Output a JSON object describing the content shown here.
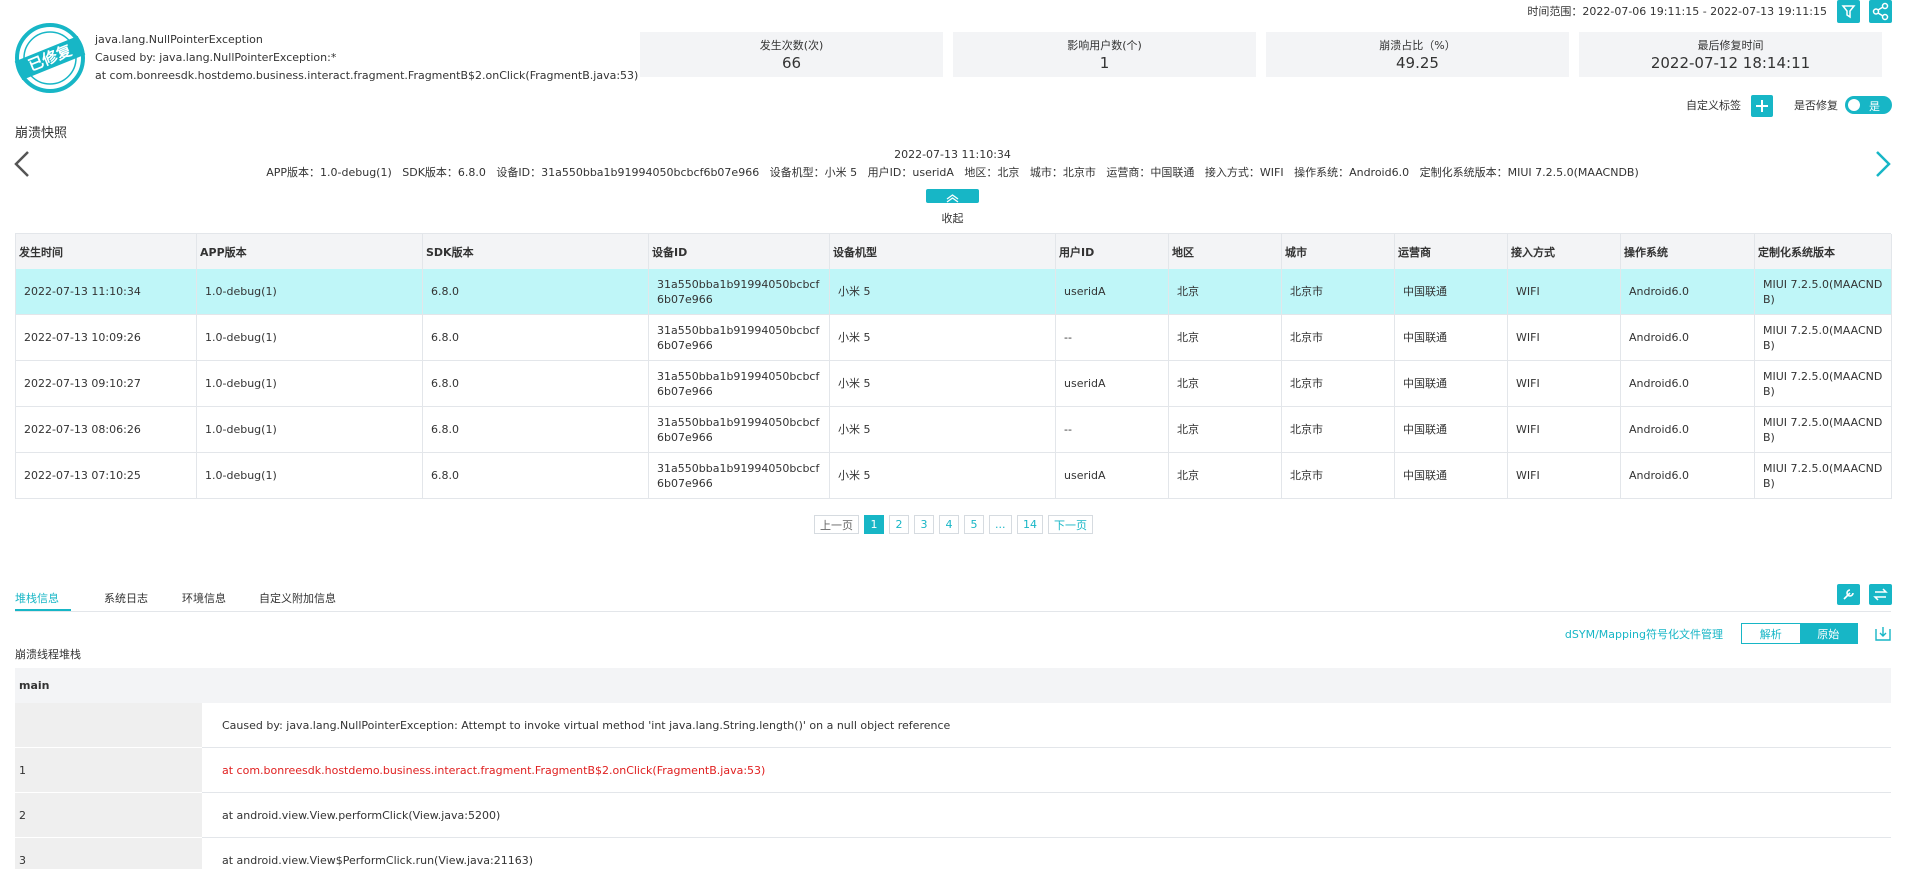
{
  "header": {
    "badge": "已修复",
    "exception": [
      "java.lang.NullPointerException",
      "Caused by: java.lang.NullPointerException:*",
      "at com.bonreesdk.hostdemo.business.interact.fragment.FragmentB$2.onClick(FragmentB.java:53)"
    ],
    "time_range": "时间范围：2022-07-06 19:11:15 - 2022-07-13 19:11:15"
  },
  "stats": [
    {
      "label": "发生次数(次)",
      "value": "66"
    },
    {
      "label": "影响用户数(个)",
      "value": "1"
    },
    {
      "label": "崩溃占比（%）",
      "value": "49.25"
    },
    {
      "label": "最后修复时间",
      "value": "2022-07-12 18:14:11"
    }
  ],
  "tag_label": "自定义标签",
  "fixed_label": "是否修复",
  "fixed_toggle": "是",
  "snapshot": {
    "title": "崩溃快照",
    "time": "2022-07-13 11:10:34",
    "info": "APP版本：1.0-debug(1)   SDK版本：6.8.0   设备ID：31a550bba1b91994050bcbcf6b07e966   设备机型：小米 5   用户ID：useridA   地区：北京   城市：北京市   运营商：中国联通   接入方式：WIFI   操作系统：Android6.0   定制化系统版本：MIUI 7.2.5.0(MAACNDB)",
    "collapse": "收起"
  },
  "table": {
    "columns": [
      "发生时间",
      "APP版本",
      "SDK版本",
      "设备ID",
      "设备机型",
      "用户ID",
      "地区",
      "城市",
      "运营商",
      "接入方式",
      "操作系统",
      "定制化系统版本"
    ],
    "rows": [
      [
        "2022-07-13 11:10:34",
        "1.0-debug(1)",
        "6.8.0",
        "31a550bba1b91994050bcbcf6b07e966",
        "小米 5",
        "useridA",
        "北京",
        "北京市",
        "中国联通",
        "WIFI",
        "Android6.0",
        "MIUI 7.2.5.0(MAACNDB)"
      ],
      [
        "2022-07-13 10:09:26",
        "1.0-debug(1)",
        "6.8.0",
        "31a550bba1b91994050bcbcf6b07e966",
        "小米 5",
        "--",
        "北京",
        "北京市",
        "中国联通",
        "WIFI",
        "Android6.0",
        "MIUI 7.2.5.0(MAACNDB)"
      ],
      [
        "2022-07-13 09:10:27",
        "1.0-debug(1)",
        "6.8.0",
        "31a550bba1b91994050bcbcf6b07e966",
        "小米 5",
        "useridA",
        "北京",
        "北京市",
        "中国联通",
        "WIFI",
        "Android6.0",
        "MIUI 7.2.5.0(MAACNDB)"
      ],
      [
        "2022-07-13 08:06:26",
        "1.0-debug(1)",
        "6.8.0",
        "31a550bba1b91994050bcbcf6b07e966",
        "小米 5",
        "--",
        "北京",
        "北京市",
        "中国联通",
        "WIFI",
        "Android6.0",
        "MIUI 7.2.5.0(MAACNDB)"
      ],
      [
        "2022-07-13 07:10:25",
        "1.0-debug(1)",
        "6.8.0",
        "31a550bba1b91994050bcbcf6b07e966",
        "小米 5",
        "useridA",
        "北京",
        "北京市",
        "中国联通",
        "WIFI",
        "Android6.0",
        "MIUI 7.2.5.0(MAACNDB)"
      ]
    ]
  },
  "pagination": {
    "prev": "上一页",
    "pages": [
      "1",
      "2",
      "3",
      "4",
      "5",
      "...",
      "14"
    ],
    "next": "下一页"
  },
  "tabs": [
    "堆栈信息",
    "系统日志",
    "环境信息",
    "自定义附加信息"
  ],
  "dsym_link": "dSYM/Mapping符号化文件管理",
  "mode_buttons": [
    "解析",
    "原始"
  ],
  "stack": {
    "title": "崩溃线程堆栈",
    "thread": "main",
    "rows": [
      [
        "",
        "Caused by: java.lang.NullPointerException: Attempt to invoke virtual method 'int java.lang.String.length()' on a null object reference"
      ],
      [
        "1",
        "at com.bonreesdk.hostdemo.business.interact.fragment.FragmentB$2.onClick(FragmentB.java:53)"
      ],
      [
        "2",
        "at android.view.View.performClick(View.java:5200)"
      ],
      [
        "3",
        "at android.view.View$PerformClick.run(View.java:21163)"
      ]
    ]
  }
}
